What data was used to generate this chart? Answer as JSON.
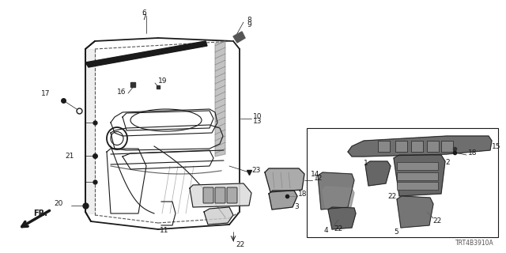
{
  "bg_color": "#ffffff",
  "fig_width": 6.4,
  "fig_height": 3.2,
  "dpi": 100,
  "watermark": "TRT4B3910A",
  "col": "#1a1a1a",
  "col2": "#555555",
  "col_gray": "#888888"
}
